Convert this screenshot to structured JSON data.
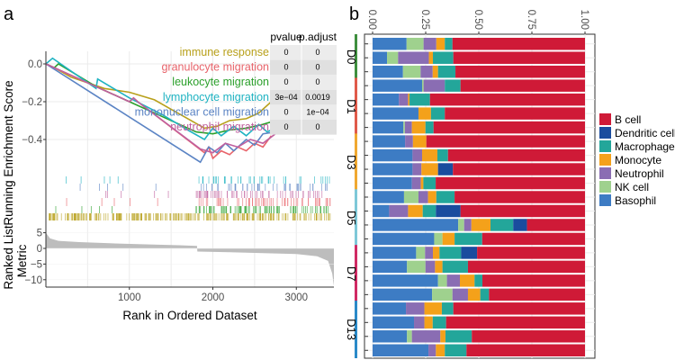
{
  "panels": {
    "a_label": "a",
    "b_label": "b"
  },
  "chart_data": [
    {
      "type": "line",
      "title": "",
      "panel": "a",
      "xlabel": "Rank in Ordered Dataset",
      "ylabel": "Running Enrichment Score",
      "xlim": [
        0,
        3450
      ],
      "ylim": [
        -0.58,
        0.07
      ],
      "xticks": [
        1000,
        2000,
        3000
      ],
      "xtick_labels": [
        "1000",
        "2000",
        "3000"
      ],
      "yticks": [
        0.0,
        -0.2,
        -0.4
      ],
      "ytick_labels": [
        "0.0",
        "−0.2",
        "−0.4"
      ],
      "grid": true,
      "series": [
        {
          "name": "immune response",
          "color": "#b8a01a",
          "x": [
            0,
            100,
            300,
            500,
            700,
            1000,
            1300,
            1500,
            1700,
            1900,
            2050,
            2200,
            2400,
            2550,
            2700,
            2760
          ],
          "y": [
            0,
            -0.02,
            -0.07,
            -0.1,
            -0.13,
            -0.15,
            -0.19,
            -0.24,
            -0.29,
            -0.34,
            -0.33,
            -0.3,
            -0.29,
            -0.26,
            -0.2,
            -0.18
          ]
        },
        {
          "name": "granulocyte migration",
          "color": "#e8636a",
          "x": [
            0,
            1000,
            1050,
            1100,
            1900,
            1950,
            2000,
            2100,
            2200,
            2300,
            2400,
            2500,
            2600,
            2700
          ],
          "y": [
            0,
            -0.2,
            -0.18,
            -0.2,
            -0.47,
            -0.44,
            -0.5,
            -0.46,
            -0.48,
            -0.44,
            -0.46,
            -0.42,
            -0.44,
            -0.38
          ]
        },
        {
          "name": "leukocyte migration",
          "color": "#2ca02c",
          "x": [
            0,
            100,
            150,
            600,
            1000,
            1400,
            1800,
            2000,
            2200,
            2400,
            2600,
            2750
          ],
          "y": [
            0,
            -0.02,
            0.0,
            -0.12,
            -0.2,
            -0.28,
            -0.36,
            -0.37,
            -0.35,
            -0.34,
            -0.32,
            -0.3
          ]
        },
        {
          "name": "lymphocyte migration",
          "color": "#1fb3c2",
          "x": [
            0,
            80,
            600,
            620,
            1000,
            1400,
            1700,
            1900,
            2000,
            2100,
            2250,
            2400,
            2550,
            2650,
            2700
          ],
          "y": [
            0,
            0.03,
            -0.13,
            -0.08,
            -0.18,
            -0.27,
            -0.35,
            -0.4,
            -0.34,
            -0.38,
            -0.33,
            -0.38,
            -0.32,
            -0.36,
            -0.35
          ]
        },
        {
          "name": "mononuclear cell migration",
          "color": "#5b84c4",
          "x": [
            0,
            1850,
            1950,
            2050,
            2150,
            2250,
            2400,
            2500,
            2600,
            2750
          ],
          "y": [
            0,
            -0.52,
            -0.44,
            -0.47,
            -0.42,
            -0.46,
            -0.4,
            -0.43,
            -0.37,
            -0.36
          ]
        },
        {
          "name": "neutrophil migration",
          "color": "#c0609e",
          "x": [
            0,
            1000,
            1050,
            1100,
            1850,
            2000,
            2150,
            2300,
            2450,
            2600,
            2750
          ],
          "y": [
            0,
            -0.2,
            -0.18,
            -0.2,
            -0.45,
            -0.47,
            -0.42,
            -0.44,
            -0.4,
            -0.42,
            -0.37
          ]
        }
      ],
      "table": {
        "headers": [
          "pvalue",
          "p.adjust"
        ],
        "rows": [
          {
            "term": "immune response",
            "pvalue": "0",
            "padjust": "0"
          },
          {
            "term": "granulocyte migration",
            "pvalue": "0",
            "padjust": "0"
          },
          {
            "term": "leukocyte migration",
            "pvalue": "0",
            "padjust": "0"
          },
          {
            "term": "lymphocyte migration",
            "pvalue": "3e−04",
            "padjust": "0.0019"
          },
          {
            "term": "mononuclear cell migration",
            "pvalue": "0",
            "padjust": "1e−04"
          },
          {
            "term": "neutrophil migration",
            "pvalue": "0",
            "padjust": "0"
          }
        ]
      },
      "ranked_metric": {
        "ylabel": "Ranked List Metric",
        "ylim": [
          -12,
          6
        ],
        "yticks": [
          5,
          0,
          -5,
          -10
        ],
        "ytick_labels": [
          "5",
          "0",
          "−5",
          "−10"
        ],
        "x": [
          0,
          50,
          150,
          400,
          800,
          1200,
          1600,
          1810,
          1815,
          2200,
          2600,
          3000,
          3250,
          3380,
          3430,
          3450
        ],
        "y": [
          5,
          3.2,
          2.4,
          2.0,
          1.6,
          1.3,
          1.0,
          0.8,
          -1.0,
          -1.2,
          -1.5,
          -1.8,
          -2.5,
          -4,
          -8,
          -12
        ]
      }
    },
    {
      "type": "bar",
      "orientation": "horizontal-stacked",
      "panel": "b",
      "title": "",
      "xlabel": "",
      "ylabel": "",
      "xlim": [
        0,
        1
      ],
      "xticks": [
        0,
        0.25,
        0.5,
        0.75,
        1.0
      ],
      "xtick_labels": [
        "0.00",
        "0.25",
        "0.50",
        "0.75",
        "1.00"
      ],
      "groups": [
        {
          "name": "D0",
          "rows": 3,
          "color": "#3f8f3f"
        },
        {
          "name": "D1",
          "rows": 4,
          "color": "#e05a4a"
        },
        {
          "name": "D3",
          "rows": 4,
          "color": "#f0a830"
        },
        {
          "name": "D5",
          "rows": 4,
          "color": "#7ec8d8"
        },
        {
          "name": "D7",
          "rows": 4,
          "color": "#d02a64"
        },
        {
          "name": "D13",
          "rows": 4,
          "color": "#2a8ac8"
        }
      ],
      "stack_order": [
        "Basophil",
        "NK cell",
        "Neutrophil",
        "Monocyte",
        "Macrophage",
        "Dendritic cell",
        "B cell"
      ],
      "colors": {
        "B cell": "#cf1a37",
        "Dendritic cell": "#1a4c9e",
        "Macrophage": "#23a69a",
        "Monocyte": "#f4a11a",
        "Neutrophil": "#8a6db3",
        "NK cell": "#9fd18e",
        "Basophil": "#3d7cc4"
      },
      "legend": [
        "B cell",
        "Dendritic cell",
        "Macrophage",
        "Monocyte",
        "Neutrophil",
        "NK cell",
        "Basophil"
      ],
      "legend_position": "right",
      "series": [
        {
          "name": "Basophil",
          "values": [
            0.16,
            0.068,
            0.143,
            0.233,
            0.124,
            0.216,
            0.145,
            0.153,
            0.188,
            0.188,
            0.185,
            0.148,
            0.078,
            0.403,
            0.29,
            0.205,
            0.162,
            0.308,
            0.28,
            0.157,
            0.195,
            0.162,
            0.263
          ]
        },
        {
          "name": "NK cell",
          "values": [
            0.08,
            0.052,
            0.083,
            0.007,
            0,
            0,
            0.007,
            0,
            0,
            0,
            0,
            0.068,
            0,
            0.028,
            0.039,
            0.042,
            0.087,
            0.042,
            0.096,
            0,
            0,
            0.023,
            0
          ]
        },
        {
          "name": "Neutrophil",
          "values": [
            0.06,
            0.145,
            0.057,
            0.1,
            0.043,
            0,
            0.033,
            0.037,
            0.045,
            0.042,
            0.042,
            0.045,
            0.089,
            0.034,
            0,
            0.037,
            0.045,
            0.061,
            0.073,
            0.087,
            0.049,
            0.134,
            0.035
          ]
        },
        {
          "name": "Monocyte",
          "values": [
            0.04,
            0.019,
            0.025,
            0,
            0.007,
            0.059,
            0.064,
            0.063,
            0.072,
            0.078,
            0.012,
            0.039,
            0.069,
            0.09,
            0.057,
            0.031,
            0.035,
            0.069,
            0.058,
            0.082,
            0.039,
            0.024,
            0.042
          ]
        },
        {
          "name": "Macrophage",
          "values": [
            0.036,
            0.096,
            0.082,
            0.074,
            0.096,
            0.065,
            0.038,
            0,
            0.05,
            0,
            0.058,
            0.086,
            0.062,
            0.107,
            0.13,
            0.102,
            0.12,
            0.037,
            0.041,
            0.054,
            0.063,
            0.124,
            0.102
          ]
        },
        {
          "name": "Dendritic cell",
          "values": [
            0,
            0,
            0,
            0,
            0,
            0,
            0,
            0,
            0,
            0.07,
            0,
            0,
            0.116,
            0.065,
            0,
            0.075,
            0,
            0,
            0,
            0,
            0,
            0,
            0
          ]
        },
        {
          "name": "B cell",
          "values": [
            0.624,
            0.62,
            0.61,
            0.586,
            0.73,
            0.66,
            0.713,
            0.747,
            0.645,
            0.622,
            0.703,
            0.614,
            0.586,
            0.273,
            0.484,
            0.508,
            0.551,
            0.483,
            0.452,
            0.62,
            0.654,
            0.533,
            0.558
          ]
        }
      ]
    }
  ]
}
